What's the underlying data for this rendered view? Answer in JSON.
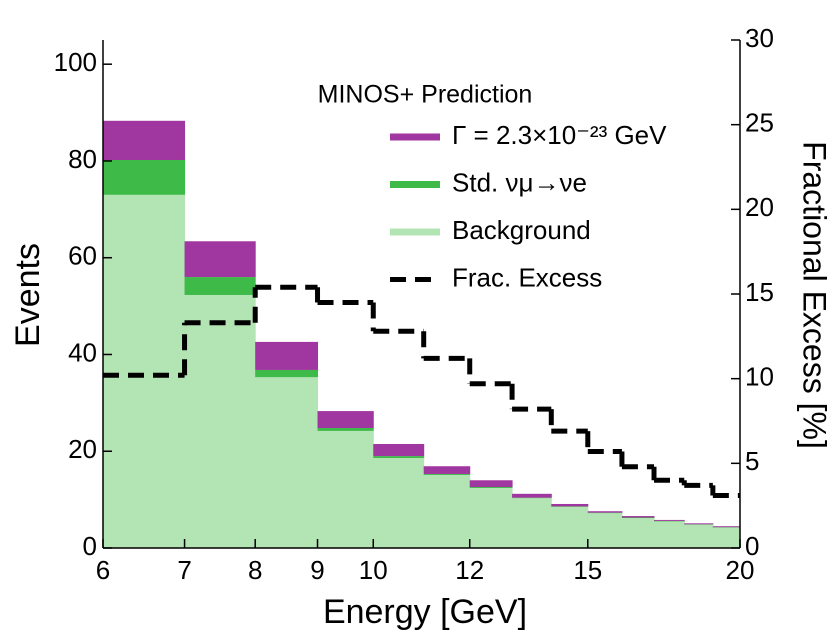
{
  "chart_data": {
    "type": "histogram",
    "stacked": true,
    "xscale": "log",
    "xlabel": "Energy [GeV]",
    "ylabel": "Events",
    "y2label": "Fractional Excess [%]",
    "legend_title": "MINOS+ Prediction",
    "bins": [
      6,
      7,
      8,
      9,
      10,
      11,
      12,
      13,
      14,
      15,
      16,
      17,
      18,
      19,
      20
    ],
    "series": [
      {
        "name": "Background",
        "color": "#b3e4b3",
        "values": [
          73,
          52.3,
          35.3,
          24.2,
          18.6,
          15.1,
          12.4,
          10.3,
          8.5,
          7.2,
          6.2,
          5.5,
          4.8,
          4.2
        ]
      },
      {
        "name": "Std. νμ→νe",
        "color": "#3dba48",
        "values": [
          7.2,
          3.7,
          1.5,
          0.6,
          0.4,
          0.2,
          0.2,
          0.1,
          0.1,
          0.1,
          0.1,
          0.1,
          0.1,
          0.1
        ]
      },
      {
        "name": "Γ = 2.3×10⁻²³ GeV",
        "color": "#a0369f",
        "values": [
          8.1,
          7.4,
          5.8,
          3.5,
          2.5,
          1.6,
          1.4,
          0.8,
          0.5,
          0.3,
          0.3,
          0.2,
          0.2,
          0.2
        ]
      },
      {
        "name": "Frac. Excess",
        "color": "#000000",
        "axis": "y2",
        "style": "dashed",
        "values": [
          10.2,
          13.3,
          15.4,
          14.5,
          12.8,
          11.2,
          9.7,
          8.2,
          6.9,
          5.7,
          4.8,
          4.0,
          3.7,
          3.1
        ]
      }
    ],
    "xlim": [
      6,
      20
    ],
    "xticks": [
      6,
      7,
      8,
      9,
      10,
      12,
      15,
      20
    ],
    "ylim": [
      0,
      105
    ],
    "yticks": [
      0,
      20,
      40,
      60,
      80,
      100
    ],
    "y2lim": [
      0,
      30
    ],
    "y2ticks": [
      0,
      5,
      10,
      15,
      20,
      25,
      30
    ]
  }
}
